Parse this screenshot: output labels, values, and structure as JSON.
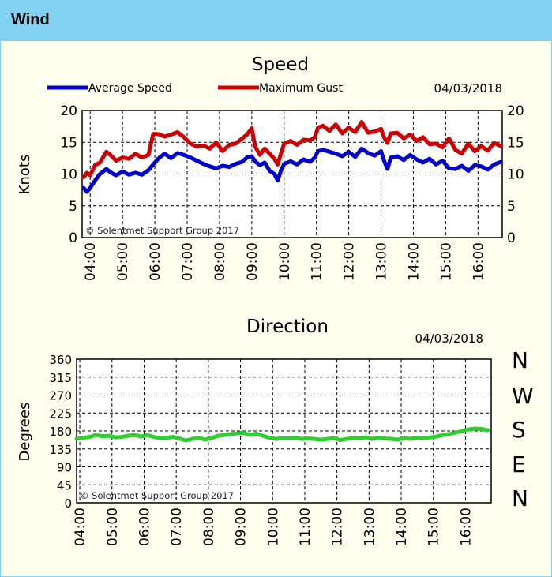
{
  "panel": {
    "title": "Wind"
  },
  "compass": [
    "N",
    "W",
    "S",
    "E",
    "N"
  ],
  "chart_data": [
    {
      "type": "line",
      "title": "Speed",
      "date": "04/03/2018",
      "ylabel": "Knots",
      "ylim": [
        0,
        20
      ],
      "yticks": [
        "0",
        "5",
        "10",
        "15",
        "20"
      ],
      "yticks_right": [
        "0",
        "5",
        "10",
        "15",
        "20"
      ],
      "xticks": [
        "04:00",
        "05:00",
        "06:00",
        "07:00",
        "08:00",
        "09:00",
        "10:00",
        "11:00",
        "12:00",
        "13:00",
        "14:00",
        "15:00",
        "16:00"
      ],
      "xlim": [
        3.75,
        16.75
      ],
      "grid": true,
      "legend": "top-left",
      "copyright": "© Solentmet Support Group 2017",
      "series": [
        {
          "name": "Average Speed",
          "color": "#0000cc",
          "x": [
            3.8,
            3.9,
            4.0,
            4.15,
            4.3,
            4.5,
            4.65,
            4.8,
            5.0,
            5.2,
            5.4,
            5.6,
            5.8,
            5.95,
            6.1,
            6.3,
            6.5,
            6.7,
            6.9,
            7.1,
            7.3,
            7.5,
            7.7,
            7.9,
            8.1,
            8.3,
            8.5,
            8.7,
            8.85,
            9.0,
            9.1,
            9.25,
            9.4,
            9.55,
            9.7,
            9.8,
            9.9,
            10.0,
            10.2,
            10.4,
            10.6,
            10.8,
            10.95,
            11.05,
            11.2,
            11.4,
            11.6,
            11.8,
            12.0,
            12.2,
            12.4,
            12.6,
            12.8,
            13.0,
            13.1,
            13.2,
            13.3,
            13.5,
            13.7,
            13.9,
            14.1,
            14.3,
            14.5,
            14.7,
            14.9,
            15.1,
            15.3,
            15.5,
            15.7,
            15.9,
            16.1,
            16.3,
            16.5,
            16.7
          ],
          "values": [
            7.8,
            7.2,
            7.8,
            9,
            10,
            10.8,
            10.2,
            9.8,
            10.4,
            9.9,
            10.2,
            9.9,
            10.6,
            11.5,
            12.4,
            13.2,
            12.5,
            13.3,
            13.0,
            12.6,
            12.1,
            11.6,
            11.2,
            10.9,
            11.3,
            11.1,
            11.6,
            11.9,
            12.6,
            12.8,
            12.0,
            11.4,
            11.8,
            10.5,
            10.0,
            9.0,
            10.5,
            11.6,
            12.0,
            11.5,
            12.3,
            11.9,
            12.6,
            13.6,
            13.8,
            13.5,
            13.2,
            12.8,
            13.5,
            12.7,
            14.0,
            13.3,
            12.9,
            13.6,
            12.0,
            10.8,
            12.6,
            12.8,
            12.2,
            13.0,
            12.3,
            11.8,
            12.4,
            11.5,
            12.1,
            10.9,
            10.8,
            11.3,
            10.5,
            11.4,
            11.2,
            10.7,
            11.5,
            11.9
          ]
        },
        {
          "name": "Maximum Gust",
          "color": "#cc0000",
          "x": [
            3.8,
            3.9,
            4.0,
            4.15,
            4.3,
            4.5,
            4.65,
            4.8,
            5.0,
            5.2,
            5.4,
            5.6,
            5.8,
            5.95,
            6.1,
            6.3,
            6.5,
            6.7,
            6.9,
            7.1,
            7.3,
            7.5,
            7.7,
            7.9,
            8.1,
            8.3,
            8.5,
            8.7,
            8.85,
            9.0,
            9.1,
            9.25,
            9.4,
            9.55,
            9.7,
            9.8,
            9.9,
            10.0,
            10.2,
            10.4,
            10.6,
            10.8,
            10.95,
            11.05,
            11.2,
            11.4,
            11.6,
            11.8,
            12.0,
            12.2,
            12.4,
            12.6,
            12.8,
            13.0,
            13.1,
            13.2,
            13.3,
            13.5,
            13.7,
            13.9,
            14.1,
            14.3,
            14.5,
            14.7,
            14.9,
            15.1,
            15.3,
            15.5,
            15.7,
            15.9,
            16.1,
            16.3,
            16.5,
            16.7
          ],
          "values": [
            9.5,
            10.2,
            9.8,
            11.4,
            11.8,
            13.5,
            12.9,
            12.1,
            12.6,
            12.4,
            13.2,
            12.6,
            13.0,
            16.3,
            16.3,
            15.9,
            16.2,
            16.6,
            15.8,
            14.8,
            14.3,
            14.5,
            14.0,
            15.0,
            13.6,
            14.6,
            14.8,
            15.6,
            16.2,
            17.2,
            14.4,
            13.0,
            14.0,
            13.2,
            12.4,
            11.5,
            13.2,
            14.8,
            15.2,
            14.6,
            15.4,
            15.3,
            15.8,
            17.3,
            17.6,
            16.8,
            17.8,
            16.4,
            17.3,
            16.6,
            18.2,
            16.5,
            16.7,
            17.1,
            15.7,
            14.9,
            16.4,
            16.5,
            15.6,
            16.2,
            15.2,
            15.8,
            14.7,
            14.8,
            14.2,
            15.6,
            13.8,
            13.2,
            14.8,
            13.6,
            14.4,
            13.7,
            14.9,
            14.4
          ]
        }
      ]
    },
    {
      "type": "line",
      "title": "Direction",
      "date": "04/03/2018",
      "ylabel": "Degrees",
      "ylim": [
        0,
        360
      ],
      "yticks": [
        "0",
        "45",
        "90",
        "135",
        "180",
        "225",
        "270",
        "315",
        "360"
      ],
      "xticks": [
        "04:00",
        "05:00",
        "06:00",
        "07:00",
        "08:00",
        "09:00",
        "10:00",
        "11:00",
        "12:00",
        "13:00",
        "14:00",
        "15:00",
        "16:00"
      ],
      "xlim": [
        3.9,
        16.8
      ],
      "grid": true,
      "copyright": "© Solentmet Support Group 2017",
      "series": [
        {
          "color": "#33cc33",
          "x": [
            3.9,
            4.1,
            4.3,
            4.5,
            4.7,
            4.9,
            5.1,
            5.3,
            5.5,
            5.7,
            5.9,
            6.1,
            6.3,
            6.5,
            6.7,
            6.9,
            7.1,
            7.3,
            7.5,
            7.7,
            7.9,
            8.1,
            8.3,
            8.5,
            8.7,
            8.9,
            9.1,
            9.3,
            9.5,
            9.7,
            9.9,
            10.1,
            10.3,
            10.5,
            10.7,
            10.9,
            11.1,
            11.3,
            11.5,
            11.7,
            11.9,
            12.1,
            12.3,
            12.5,
            12.7,
            12.9,
            13.1,
            13.3,
            13.5,
            13.7,
            13.9,
            14.1,
            14.3,
            14.5,
            14.7,
            14.9,
            15.1,
            15.3,
            15.5,
            15.7,
            15.9,
            16.1,
            16.3,
            16.5,
            16.7
          ],
          "values": [
            160,
            163,
            165,
            170,
            167,
            168,
            164,
            165,
            168,
            170,
            166,
            170,
            165,
            162,
            163,
            165,
            161,
            156,
            160,
            163,
            158,
            162,
            168,
            170,
            172,
            174,
            175,
            170,
            173,
            168,
            163,
            160,
            162,
            161,
            163,
            160,
            161,
            160,
            158,
            160,
            162,
            157,
            160,
            162,
            161,
            164,
            160,
            163,
            161,
            160,
            158,
            162,
            160,
            163,
            161,
            164,
            166,
            170,
            172,
            176,
            180,
            184,
            186,
            185,
            182
          ]
        }
      ]
    }
  ]
}
